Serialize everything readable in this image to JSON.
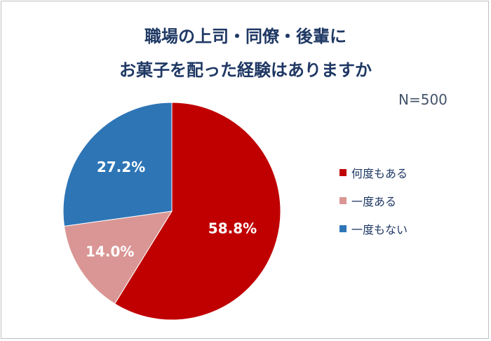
{
  "chart_data": {
    "type": "pie",
    "title_lines": [
      "職場の上司・同僚・後輩に",
      "お菓子を配った経験はありますか"
    ],
    "annotation": "N=500",
    "categories": [
      "何度もある",
      "一度ある",
      "一度もない"
    ],
    "values": [
      58.8,
      14.0,
      27.2
    ],
    "labels": [
      "58.8%",
      "14.0%",
      "27.2%"
    ],
    "colors": [
      "#c00000",
      "#d99694",
      "#2e75b6"
    ],
    "start": "12 o'clock, clockwise",
    "legend_position": "right"
  }
}
